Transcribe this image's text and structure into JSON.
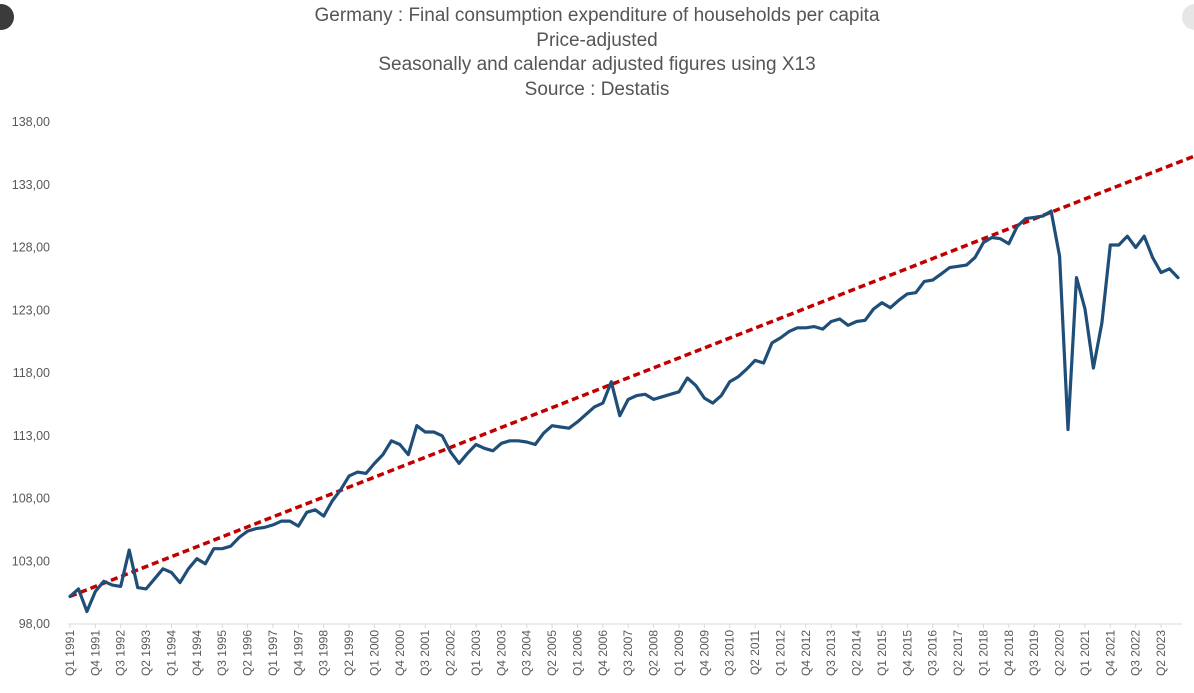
{
  "title_lines": [
    "Germany : Final consumption expenditure of households per capita",
    "Price-adjusted",
    "Seasonally and calendar adjusted figures using X13",
    "Source : Destatis"
  ],
  "chart_data": {
    "type": "line",
    "title": "Germany : Final consumption expenditure of households per capita",
    "subtitle": "Price-adjusted / Seasonally and calendar adjusted figures using X13 / Source : Destatis",
    "ylim": [
      98,
      138
    ],
    "yticks": [
      "98,00",
      "103,00",
      "108,00",
      "113,00",
      "118,00",
      "123,00",
      "128,00",
      "133,00",
      "138,00"
    ],
    "ytick_values": [
      98,
      103,
      108,
      113,
      118,
      123,
      128,
      133,
      138
    ],
    "xtick_labels": [
      "Q1 1991",
      "Q4 1991",
      "Q3 1992",
      "Q2 1993",
      "Q1 1994",
      "Q4 1994",
      "Q3 1995",
      "Q2 1996",
      "Q1 1997",
      "Q4 1997",
      "Q3 1998",
      "Q2 1999",
      "Q1 2000",
      "Q4 2000",
      "Q3 2001",
      "Q2 2002",
      "Q1 2003",
      "Q4 2003",
      "Q3 2004",
      "Q2 2005",
      "Q1 2006",
      "Q4 2006",
      "Q3 2007",
      "Q2 2008",
      "Q1 2009",
      "Q4 2009",
      "Q3 2010",
      "Q2 2011",
      "Q1 2012",
      "Q4 2012",
      "Q3 2013",
      "Q2 2014",
      "Q1 2015",
      "Q4 2015",
      "Q3 2016",
      "Q2 2017",
      "Q1 2018",
      "Q4 2018",
      "Q3 2019",
      "Q2 2020",
      "Q1 2021",
      "Q4 2021",
      "Q3 2022",
      "Q2 2023"
    ],
    "tick_interval_quarters": 3,
    "grid": false,
    "legend": "none",
    "series": [
      {
        "color": "#1f4e79",
        "style": "solid",
        "start": "Q1 1991",
        "values": [
          100.2,
          100.8,
          99.0,
          100.6,
          101.4,
          101.1,
          101.0,
          103.9,
          100.9,
          100.8,
          101.6,
          102.4,
          102.1,
          101.3,
          102.4,
          103.2,
          102.8,
          104.0,
          104.0,
          104.2,
          104.9,
          105.4,
          105.6,
          105.7,
          105.9,
          106.2,
          106.2,
          105.8,
          106.9,
          107.1,
          106.6,
          107.8,
          108.7,
          109.8,
          110.1,
          110.0,
          110.8,
          111.5,
          112.6,
          112.3,
          111.5,
          113.8,
          113.3,
          113.3,
          113.0,
          111.7,
          110.8,
          111.6,
          112.3,
          112.0,
          111.8,
          112.4,
          112.6,
          112.6,
          112.5,
          112.3,
          113.2,
          113.8,
          113.7,
          113.6,
          114.1,
          114.7,
          115.3,
          115.6,
          117.3,
          114.6,
          115.9,
          116.2,
          116.3,
          115.9,
          116.1,
          116.3,
          116.5,
          117.6,
          117.0,
          116.0,
          115.6,
          116.2,
          117.3,
          117.7,
          118.3,
          119.0,
          118.8,
          120.4,
          120.8,
          121.3,
          121.6,
          121.6,
          121.7,
          121.5,
          122.1,
          122.3,
          121.8,
          122.1,
          122.2,
          123.1,
          123.6,
          123.2,
          123.8,
          124.3,
          124.4,
          125.3,
          125.4,
          125.9,
          126.4,
          126.5,
          126.6,
          127.2,
          128.4,
          128.8,
          128.7,
          128.3,
          129.7,
          130.3,
          130.4,
          130.5,
          130.9,
          127.3,
          113.5,
          125.6,
          123.1,
          118.4,
          122.0,
          128.2,
          128.2,
          128.9,
          128.0,
          128.9,
          127.2,
          126.0,
          126.3,
          125.6
        ]
      },
      {
        "color": "#c00000",
        "style": "dashed",
        "trend_endpoints": [
          [
            0,
            100.2
          ],
          [
            133,
            135.3
          ]
        ]
      }
    ]
  }
}
